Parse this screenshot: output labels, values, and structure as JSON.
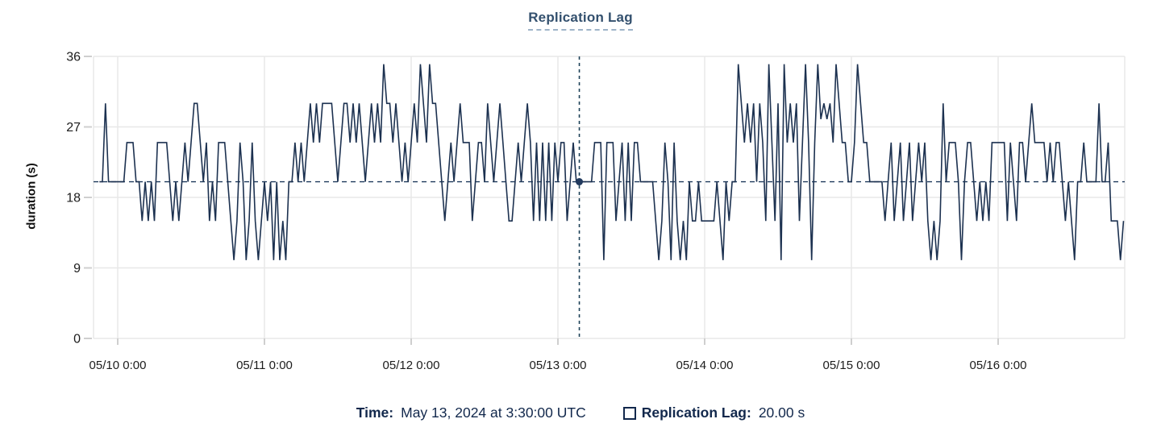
{
  "chart": {
    "title": "Replication Lag",
    "y_axis": {
      "title": "duration (s)"
    },
    "colors": {
      "series_line": "#1c3150",
      "title_text": "#33506e",
      "navy_text": "#12284c",
      "gridline": "#e8e8e8",
      "tick_stub": "#cfcfcf",
      "axis_label": "#1c1c1c",
      "reference_dash": "#1f3a5c",
      "crosshair_dash": "#1e4258",
      "crosshair_dot": "#223a5e"
    }
  },
  "tooltip": {
    "time_label": "Time:",
    "time_value": "May 13, 2024 at 3:30:00 UTC",
    "series_label": "Replication Lag:",
    "series_value": "20.00 s"
  },
  "chart_data": {
    "type": "line",
    "title": "Replication Lag",
    "series_name": "Replication Lag",
    "xlabel": "",
    "ylabel": "duration (s)",
    "ylim": [
      0,
      36
    ],
    "y_ticks": [
      0,
      9,
      18,
      27,
      36
    ],
    "x_tick_labels": [
      "05/10 0:00",
      "05/11 0:00",
      "05/12 0:00",
      "05/13 0:00",
      "05/14 0:00",
      "05/15 0:00",
      "05/16 0:00"
    ],
    "grid": true,
    "legend_position": "bottom",
    "interval_minutes": 30,
    "start": "2024-05-09 21:00 UTC",
    "unit": "s",
    "reference_line_y": 20,
    "crosshair": {
      "index": 157,
      "time": "May 13, 2024 at 3:30:00 UTC",
      "value": 20.0
    },
    "values": [
      20,
      20,
      30,
      20,
      20,
      20,
      20,
      20,
      20,
      25,
      25,
      25,
      20,
      20,
      15,
      20,
      15,
      20,
      15,
      25,
      25,
      25,
      25,
      20,
      15,
      20,
      15,
      20,
      25,
      20,
      25,
      30,
      30,
      25,
      20,
      25,
      15,
      20,
      15,
      25,
      25,
      25,
      20,
      15,
      10,
      15,
      25,
      20,
      10,
      15,
      25,
      15,
      10,
      15,
      20,
      15,
      20,
      10,
      20,
      10,
      15,
      10,
      20,
      20,
      25,
      20,
      25,
      20,
      25,
      30,
      25,
      30,
      25,
      30,
      30,
      30,
      30,
      25,
      20,
      25,
      30,
      30,
      25,
      30,
      25,
      30,
      25,
      20,
      25,
      30,
      25,
      30,
      25,
      35,
      30,
      30,
      25,
      30,
      25,
      20,
      25,
      20,
      25,
      30,
      25,
      35,
      30,
      25,
      35,
      30,
      30,
      25,
      20,
      15,
      20,
      25,
      20,
      25,
      30,
      25,
      25,
      25,
      15,
      20,
      25,
      25,
      20,
      30,
      25,
      20,
      25,
      30,
      25,
      20,
      15,
      15,
      20,
      25,
      20,
      25,
      30,
      25,
      15,
      25,
      15,
      25,
      15,
      25,
      15,
      25,
      20,
      25,
      25,
      15,
      20,
      25,
      20,
      20,
      20,
      20,
      20,
      20,
      25,
      25,
      25,
      10,
      25,
      25,
      25,
      15,
      20,
      25,
      15,
      25,
      15,
      25,
      25,
      20,
      20,
      20,
      20,
      20,
      15,
      10,
      15,
      25,
      20,
      10,
      25,
      15,
      10,
      15,
      10,
      20,
      15,
      15,
      20,
      15,
      15,
      15,
      15,
      15,
      20,
      15,
      10,
      20,
      15,
      20,
      20,
      35,
      30,
      25,
      30,
      25,
      30,
      20,
      30,
      25,
      15,
      35,
      25,
      15,
      30,
      10,
      35,
      25,
      30,
      25,
      30,
      15,
      25,
      35,
      25,
      10,
      25,
      35,
      28,
      30,
      28,
      30,
      25,
      35,
      30,
      25,
      25,
      20,
      20,
      25,
      35,
      30,
      25,
      25,
      20,
      20,
      20,
      20,
      20,
      15,
      20,
      25,
      15,
      20,
      25,
      15,
      20,
      25,
      15,
      20,
      25,
      20,
      25,
      15,
      10,
      15,
      10,
      15,
      30,
      20,
      25,
      25,
      25,
      20,
      10,
      20,
      25,
      25,
      20,
      15,
      20,
      15,
      20,
      15,
      25,
      25,
      25,
      25,
      25,
      15,
      25,
      20,
      15,
      25,
      25,
      20,
      25,
      30,
      25,
      25,
      25,
      25,
      20,
      25,
      20,
      25,
      25,
      20,
      15,
      20,
      15,
      10,
      20,
      20,
      25,
      20,
      20,
      20,
      20,
      30,
      20,
      20,
      25,
      15,
      15,
      15,
      10,
      15
    ]
  }
}
